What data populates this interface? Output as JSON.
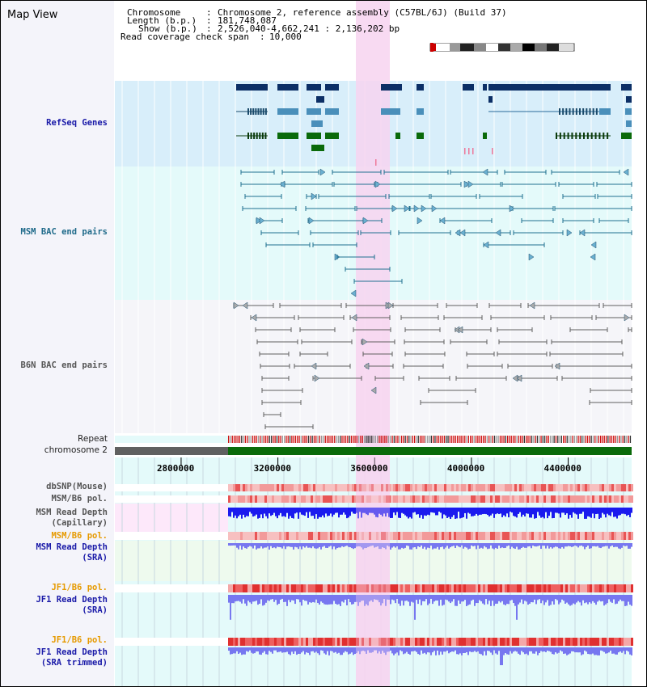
{
  "title": "Map View",
  "header": {
    "chromosome_key": "Chromosome",
    "chromosome_val": "Chromosome 2, reference assembly (C57BL/6J) (Build 37)",
    "length_key": "Length (b.p.)",
    "length_val": "181,748,087",
    "show_key": "Show (b.p.)",
    "show_val": "2,526,040-4,662,241 : 2,136,202 bp",
    "span_key": "Read coverage check span",
    "span_val": "10,000"
  },
  "tracks": {
    "refseq": "RefSeq Genes",
    "msm_bac": "MSM BAC end pairs",
    "b6n_bac": "B6N BAC end pairs",
    "repeat": "Repeat",
    "chromosome": "chromosome 2",
    "dbsnp": "dbSNP(Mouse)",
    "msm_b6_pol_1": "MSM/B6 pol.",
    "msm_depth_cap_1": "MSM Read Depth",
    "msm_depth_cap_2": "(Capillary)",
    "msm_b6_pol_2": "MSM/B6 pol.",
    "msm_depth_sra_1": "MSM Read Depth",
    "msm_depth_sra_2": "(SRA)",
    "jf1_b6_pol_1": "JF1/B6 pol.",
    "jf1_depth_1": "JF1 Read Depth",
    "jf1_depth_2": "(SRA)",
    "jf1_b6_pol_2": "JF1/B6 pol.",
    "jf1_trim_1": "JF1 Read Depth",
    "jf1_trim_2": "(SRA trimmed)"
  },
  "axis": {
    "ticks": [
      {
        "value": 2800000,
        "label": "2800000"
      },
      {
        "value": 3200000,
        "label": "3200000"
      },
      {
        "value": 3600000,
        "label": "3600000"
      },
      {
        "value": 4000000,
        "label": "4000000"
      },
      {
        "value": 4400000,
        "label": "4400000"
      }
    ],
    "range": [
      2526040,
      4662241
    ]
  },
  "colors": {
    "highlight": "#f7d3f0",
    "refseq_bg": "#d8eefa",
    "msm_bg": "#e4fafa",
    "b6n_bg": "#f5f5f9",
    "gene_navy": "#0c2f66",
    "gene_light": "#4a8fba",
    "gene_green": "#0a6a0a",
    "msm_bac": "#1f7090",
    "b6n_bac": "#606060",
    "chrom_gray": "#606060",
    "chrom_green": "#0a6a0a",
    "depth_blue": "#1a1aee",
    "depth_light": "#7777f0",
    "pol_red": "#e63030"
  }
}
